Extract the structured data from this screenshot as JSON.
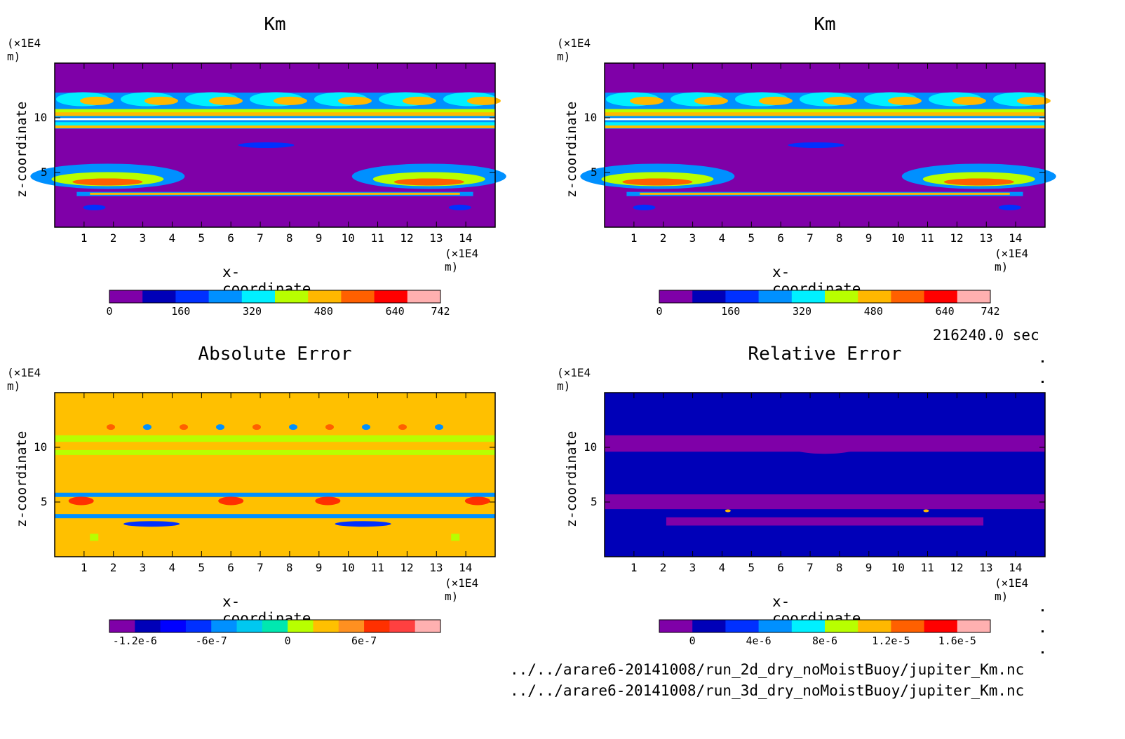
{
  "header": {
    "time_label": "216240.0 sec"
  },
  "footer": {
    "file1": "../../arare6-20141008/run_2d_dry_noMoistBuoy/jupiter_Km.nc",
    "file2": "../../arare6-20141008/run_3d_dry_noMoistBuoy/jupiter_Km.nc"
  },
  "colors": {
    "purple": "#7f00a8",
    "navy": "#0000b8",
    "blue": "#0030ff",
    "azure": "#0090ff",
    "cyan": "#00f0ff",
    "lime": "#b8ff00",
    "yellow": "#ffb800",
    "orange": "#ff6000",
    "red": "#ff0000",
    "pink": "#ffb0b0",
    "gold": "#ffc000"
  },
  "chart_data": [
    {
      "type": "heatmap",
      "title": "Km",
      "xlabel": "x-coordinate",
      "ylabel": "z-coordinate",
      "x_unit": "(×1E4 m)",
      "y_unit": "(×1E4 m)",
      "xlim": [
        0,
        15
      ],
      "ylim": [
        0,
        15
      ],
      "x_ticks": [
        "1",
        "2",
        "3",
        "4",
        "5",
        "6",
        "7",
        "8",
        "9",
        "10",
        "11",
        "12",
        "13",
        "14"
      ],
      "y_ticks": [
        "5",
        "10"
      ],
      "colorbar": {
        "min": 0,
        "max": 742,
        "ticks": [
          "0",
          "160",
          "320",
          "480",
          "640",
          "742"
        ],
        "tick_values": [
          0,
          160,
          320,
          480,
          640,
          742
        ]
      }
    },
    {
      "type": "heatmap",
      "title": "Km",
      "xlabel": "x-coordinate",
      "ylabel": "z-coordinate",
      "x_unit": "(×1E4 m)",
      "y_unit": "(×1E4 m)",
      "xlim": [
        0,
        15
      ],
      "ylim": [
        0,
        15
      ],
      "x_ticks": [
        "1",
        "2",
        "3",
        "4",
        "5",
        "6",
        "7",
        "8",
        "9",
        "10",
        "11",
        "12",
        "13",
        "14"
      ],
      "y_ticks": [
        "5",
        "10"
      ],
      "colorbar": {
        "min": 0,
        "max": 742,
        "ticks": [
          "0",
          "160",
          "320",
          "480",
          "640",
          "742"
        ],
        "tick_values": [
          0,
          160,
          320,
          480,
          640,
          742
        ]
      }
    },
    {
      "type": "heatmap",
      "title": "Absolute Error",
      "xlabel": "x-coordinate",
      "ylabel": "z-coordinate",
      "x_unit": "(×1E4 m)",
      "y_unit": "(×1E4 m)",
      "xlim": [
        0,
        15
      ],
      "ylim": [
        0,
        15
      ],
      "x_ticks": [
        "1",
        "2",
        "3",
        "4",
        "5",
        "6",
        "7",
        "8",
        "9",
        "10",
        "11",
        "12",
        "13",
        "14"
      ],
      "y_ticks": [
        "5",
        "10"
      ],
      "colorbar": {
        "min": -1.4e-06,
        "max": 1.2e-06,
        "ticks": [
          "-1.2e-6",
          "-6e-7",
          "0",
          "6e-7"
        ],
        "tick_values": [
          -1.2e-06,
          -6e-07,
          0,
          6e-07
        ]
      }
    },
    {
      "type": "heatmap",
      "title": "Relative Error",
      "xlabel": "x-coordinate",
      "ylabel": "z-coordinate",
      "x_unit": "(×1E4 m)",
      "y_unit": "(×1E4 m)",
      "xlim": [
        0,
        15
      ],
      "ylim": [
        0,
        15
      ],
      "x_ticks": [
        "1",
        "2",
        "3",
        "4",
        "5",
        "6",
        "7",
        "8",
        "9",
        "10",
        "11",
        "12",
        "13",
        "14"
      ],
      "y_ticks": [
        "5",
        "10"
      ],
      "colorbar": {
        "min": -2e-06,
        "max": 1.8e-05,
        "ticks": [
          "0",
          "4e-6",
          "8e-6",
          "1.2e-5",
          "1.6e-5"
        ],
        "tick_values": [
          0,
          4e-06,
          8e-06,
          1.2e-05,
          1.6e-05
        ]
      }
    }
  ]
}
